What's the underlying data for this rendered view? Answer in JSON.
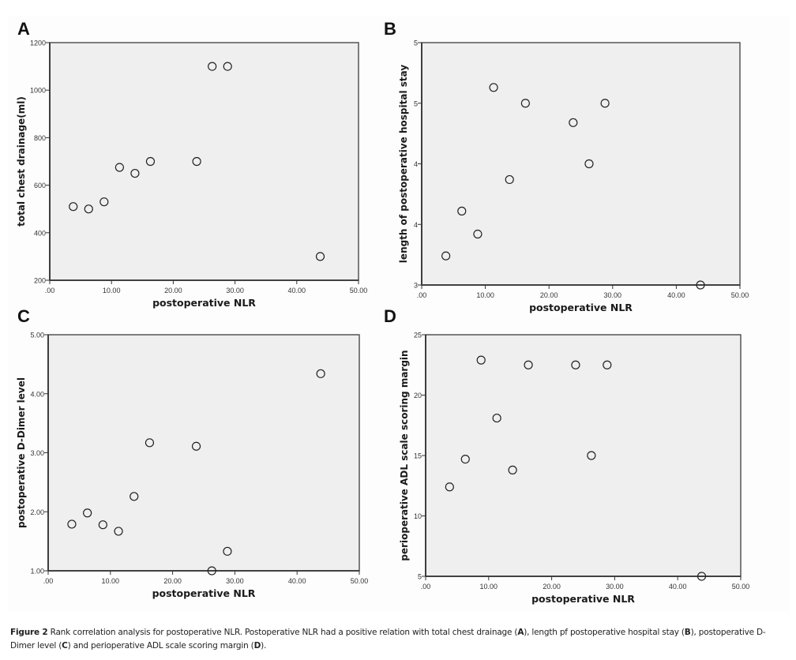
{
  "figure": {
    "caption_label": "Figure 2",
    "caption_parts": [
      {
        "text": " Rank correlation analysis for postoperative NLR. Postoperative NLR had a positive relation with total chest drainage (",
        "bold": false
      },
      {
        "text": "A",
        "bold": true
      },
      {
        "text": "), length pf postoperative hospital stay (",
        "bold": false
      },
      {
        "text": "B",
        "bold": true
      },
      {
        "text": "), postoperative D-Dimer level (",
        "bold": false
      },
      {
        "text": "C",
        "bold": true
      },
      {
        "text": ") and perioperative ADL scale scoring margin (",
        "bold": false
      },
      {
        "text": "D",
        "bold": true
      },
      {
        "text": ").",
        "bold": false
      }
    ],
    "colors": {
      "plot_background": "#efefef",
      "axis": "#333333",
      "frame": "#555555",
      "marker_stroke": "#222222"
    }
  },
  "chart_data": [
    {
      "panel": "A",
      "type": "scatter",
      "title": "",
      "xlabel": "postoperative NLR",
      "ylabel": "total chest drainage(ml)",
      "xlim": [
        0,
        50
      ],
      "ylim": [
        200,
        1200
      ],
      "xticks": [
        0,
        10,
        20,
        30,
        40,
        50
      ],
      "xtick_labels": [
        ".00",
        "10.00",
        "20.00",
        "30.00",
        "40.00",
        "50.00"
      ],
      "yticks": [
        200,
        400,
        600,
        800,
        1000,
        1200
      ],
      "ytick_labels": [
        "200",
        "400",
        "600",
        "800",
        "1000",
        "1200"
      ],
      "grid": false,
      "x": [
        3.8,
        6.3,
        8.8,
        11.3,
        13.8,
        16.3,
        23.8,
        26.3,
        28.8,
        43.8
      ],
      "y": [
        510,
        500,
        530,
        675,
        650,
        700,
        700,
        1100,
        1100,
        300
      ]
    },
    {
      "panel": "B",
      "type": "scatter",
      "title": "",
      "xlabel": "postoperative NLR",
      "ylabel": "length of postoperative hospital stay",
      "xlim": [
        0,
        50
      ],
      "ylim": [
        3,
        5
      ],
      "xticks": [
        0,
        10,
        20,
        30,
        40,
        50
      ],
      "xtick_labels": [
        ".00",
        "10.00",
        "20.00",
        "30.00",
        "40.00",
        "50.00"
      ],
      "yticks": [
        3,
        3.5,
        4,
        4.5,
        5
      ],
      "ytick_labels": [
        "3",
        "4",
        "4",
        "5",
        "5"
      ],
      "grid": false,
      "x": [
        3.8,
        6.3,
        8.8,
        11.3,
        13.8,
        16.3,
        23.8,
        26.3,
        28.8,
        43.8
      ],
      "y": [
        3.24,
        3.61,
        3.42,
        4.63,
        3.87,
        4.5,
        4.34,
        4.0,
        4.5,
        3.0
      ]
    },
    {
      "panel": "C",
      "type": "scatter",
      "title": "",
      "xlabel": "postoperative NLR",
      "ylabel": "postoperative D-Dimer level",
      "xlim": [
        0,
        50
      ],
      "ylim": [
        1,
        5
      ],
      "xticks": [
        0,
        10,
        20,
        30,
        40,
        50
      ],
      "xtick_labels": [
        ".00",
        "10.00",
        "20.00",
        "30.00",
        "40.00",
        "50.00"
      ],
      "yticks": [
        1,
        2,
        3,
        4,
        5
      ],
      "ytick_labels": [
        "1.00",
        "2.00",
        "3.00",
        "4.00",
        "5.00"
      ],
      "grid": false,
      "x": [
        3.8,
        6.3,
        8.8,
        11.3,
        13.8,
        16.3,
        23.8,
        26.3,
        28.8,
        43.8
      ],
      "y": [
        1.79,
        1.98,
        1.78,
        1.67,
        2.26,
        3.17,
        3.11,
        1.0,
        1.33,
        4.34
      ]
    },
    {
      "panel": "D",
      "type": "scatter",
      "title": "",
      "xlabel": "postoperative NLR",
      "ylabel": "perioperative ADL scale scoring margin",
      "xlim": [
        0,
        50
      ],
      "ylim": [
        5,
        25
      ],
      "xticks": [
        0,
        10,
        20,
        30,
        40,
        50
      ],
      "xtick_labels": [
        ".00",
        "10.00",
        "20.00",
        "30.00",
        "40.00",
        "50.00"
      ],
      "yticks": [
        5,
        10,
        15,
        20,
        25
      ],
      "ytick_labels": [
        "5",
        "10",
        "15",
        "20",
        "25"
      ],
      "grid": false,
      "x": [
        3.8,
        6.3,
        8.8,
        11.3,
        13.8,
        16.3,
        23.8,
        26.3,
        28.8,
        43.8
      ],
      "y": [
        12.4,
        14.7,
        22.9,
        18.1,
        13.8,
        22.5,
        22.5,
        15.0,
        22.5,
        5.0
      ]
    }
  ]
}
